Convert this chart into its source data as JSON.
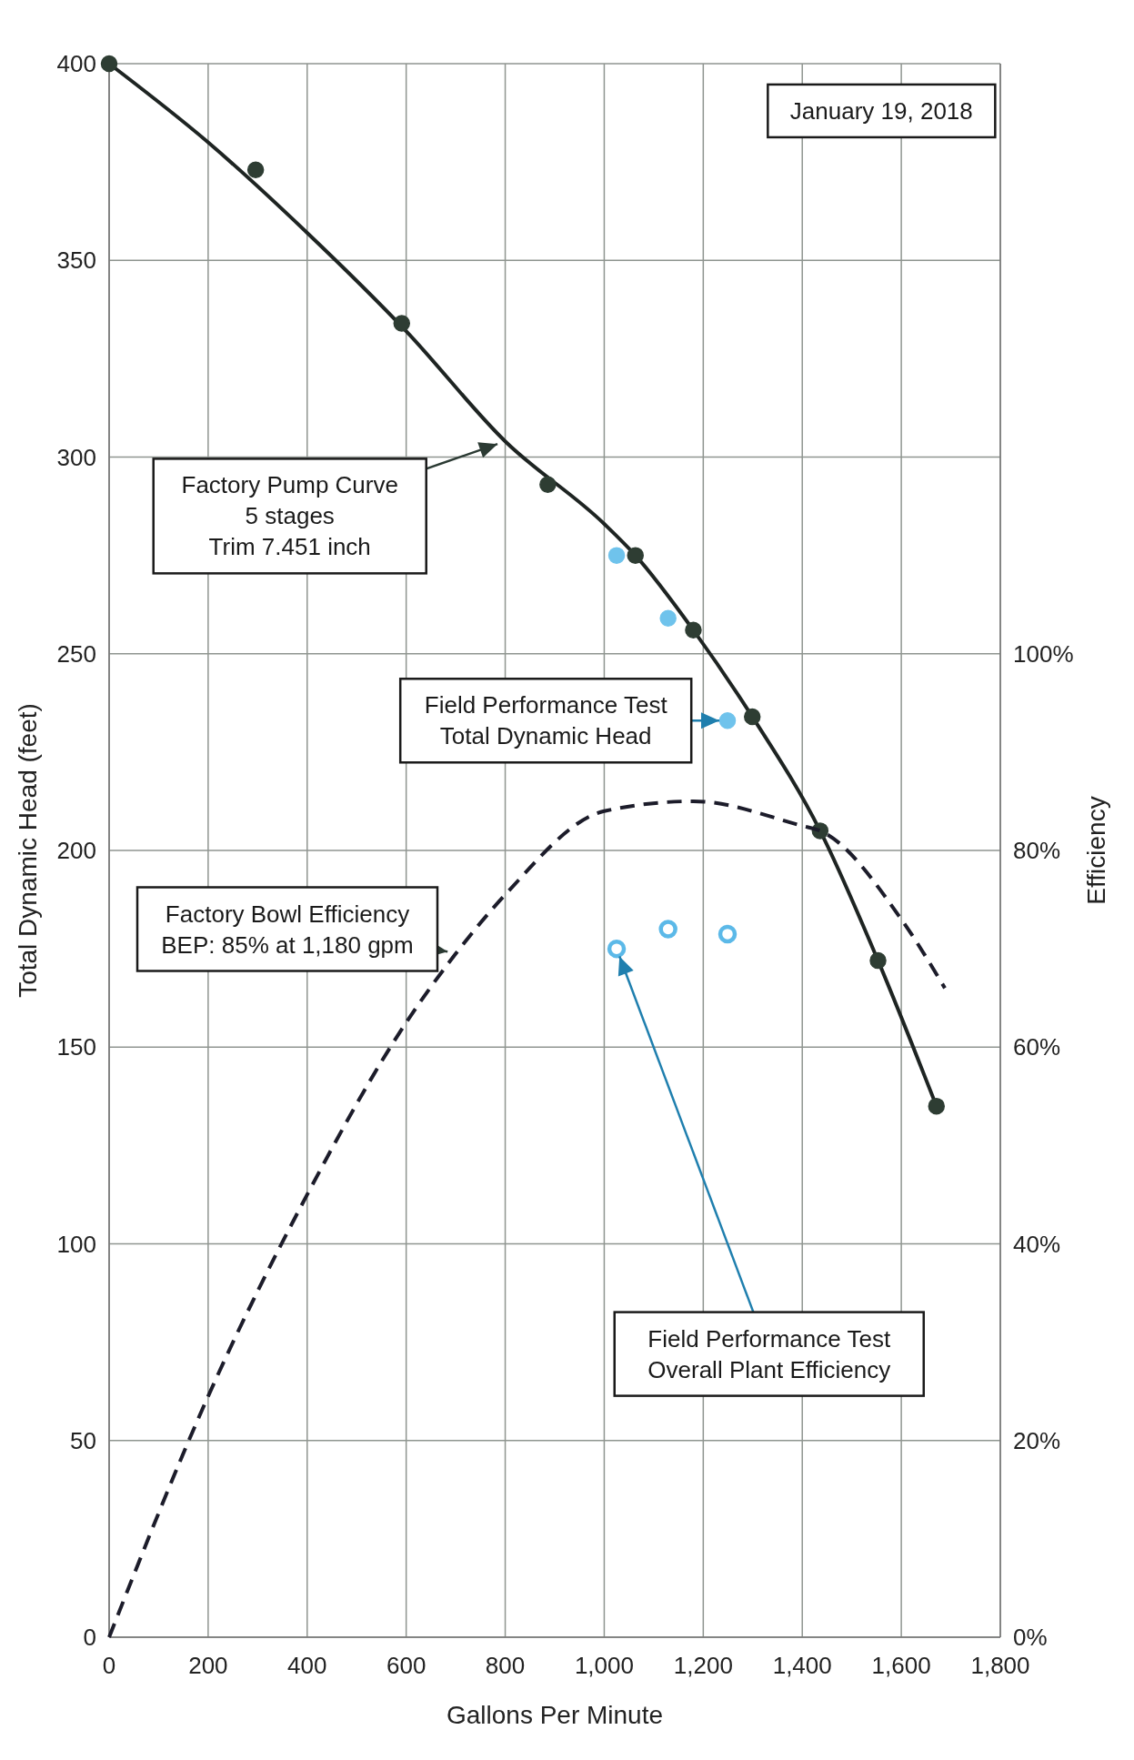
{
  "chart_data": {
    "type": "line",
    "xlabel": "Gallons Per Minute",
    "ylabel": "Total Dynamic Head (feet)",
    "y2label": "Efficiency",
    "xlim": [
      0,
      1800
    ],
    "ylim": [
      0,
      400
    ],
    "y2lim": [
      0,
      160
    ],
    "xticks": [
      0,
      200,
      400,
      600,
      800,
      {
        "value": 1000,
        "label": "1,000"
      },
      {
        "value": 1200,
        "label": "1,200"
      },
      {
        "value": 1400,
        "label": "1,400"
      },
      {
        "value": 1600,
        "label": "1,600"
      },
      {
        "value": 1800,
        "label": "1,800"
      }
    ],
    "yticks": [
      0,
      50,
      100,
      150,
      200,
      250,
      300,
      350,
      400
    ],
    "y2ticks": [
      {
        "value": 0,
        "label": "0%"
      },
      {
        "value": 20,
        "label": "20%"
      },
      {
        "value": 40,
        "label": "40%"
      },
      {
        "value": 60,
        "label": "60%"
      },
      {
        "value": 80,
        "label": "80%"
      },
      {
        "value": 100,
        "label": "100%"
      }
    ],
    "grid": true,
    "series": [
      {
        "color": "#1e2422",
        "line_style": "solid",
        "marker": "none",
        "x": [
          0,
          200,
          400,
          600,
          800,
          1000,
          1063,
          1180,
          1299,
          1436,
          1553,
          1671
        ],
        "values": [
          400,
          380,
          357,
          332,
          304,
          283,
          275,
          256,
          234,
          205,
          172,
          135
        ]
      },
      {
        "type": "scatter",
        "color": "#2e3d33",
        "marker": "circle",
        "x": [
          0,
          296,
          591,
          886,
          1063,
          1180,
          1299,
          1436,
          1553,
          1671
        ],
        "values": [
          400,
          373,
          334,
          293,
          275,
          256,
          234,
          205,
          172,
          135
        ]
      },
      {
        "type": "scatter",
        "color": "#6fc3ec",
        "marker": "circle",
        "x": [
          1025,
          1129,
          1249
        ],
        "values": [
          275,
          259,
          233
        ]
      },
      {
        "type": "scatter",
        "color": "#5cb9e8",
        "marker": "circle",
        "axis": "y2",
        "x": [
          1025,
          1129,
          1249
        ],
        "values": [
          70,
          72,
          71.5
        ]
      },
      {
        "type": "line",
        "color": "#1c1c2a",
        "line_style": "dashed",
        "marker": "none",
        "axis": "y2",
        "x": [
          0,
          200,
          400,
          600,
          700,
          800,
          1000,
          1180,
          1400,
          1436,
          1600,
          1688
        ],
        "values": [
          0,
          24.5,
          45,
          62.5,
          69.5,
          75.5,
          84,
          85,
          82.5,
          82,
          73,
          66
        ]
      }
    ],
    "annotations": [
      "January 19, 2018",
      {
        "text": "Field Performance Test\nTotal Dynamic Head",
        "x": 1249,
        "y": 233
      },
      "Field Performance Test\nOverall Plant Efficiency",
      "Factory Pump Curve\n5 stages\nTrim 7.451 inch",
      {
        "text": "Factory Bowl Efficiency\nBEP: 85% at 1,180 gpm",
        "x": 700,
        "y": 174
      }
    ]
  }
}
